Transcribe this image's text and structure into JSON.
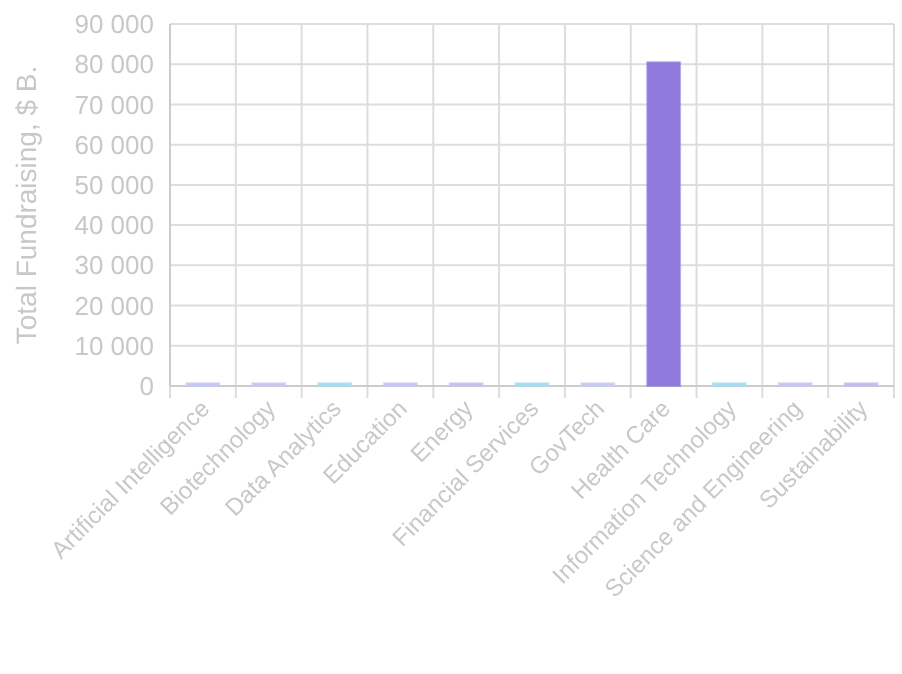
{
  "chart_data": {
    "type": "bar",
    "ylabel": "Total Fundraising, $ B.",
    "categories": [
      "Artificial Intelligence",
      "Biotechnology",
      "Data Analytics",
      "Education",
      "Energy",
      "Financial Services",
      "GovTech",
      "Health Care",
      "Information Technology",
      "Science and Engineering",
      "Sustainability"
    ],
    "values": [
      700,
      700,
      700,
      700,
      700,
      700,
      700,
      80500,
      700,
      700,
      700
    ],
    "colors": [
      "#c5c8f2",
      "#cfc6f0",
      "#a8dcf2",
      "#c8c6f2",
      "#cbbfea",
      "#a8dcf2",
      "#c8cbf2",
      "#9179dd",
      "#a8dcf2",
      "#c8c8f2",
      "#c6bcec"
    ],
    "ylim": [
      0,
      90000
    ],
    "yticks": [
      0,
      {
        "value": 10000,
        "label": "10 000"
      },
      {
        "value": 20000,
        "label": "20 000"
      },
      {
        "value": 30000,
        "label": "30 000"
      },
      {
        "value": 40000,
        "label": "40 000"
      },
      {
        "value": 50000,
        "label": "50 000"
      },
      {
        "value": 60000,
        "label": "60 000"
      },
      {
        "value": 70000,
        "label": "70 000"
      },
      {
        "value": 80000,
        "label": "80 000"
      },
      {
        "value": 90000,
        "label": "90 000"
      }
    ],
    "grid": true
  }
}
